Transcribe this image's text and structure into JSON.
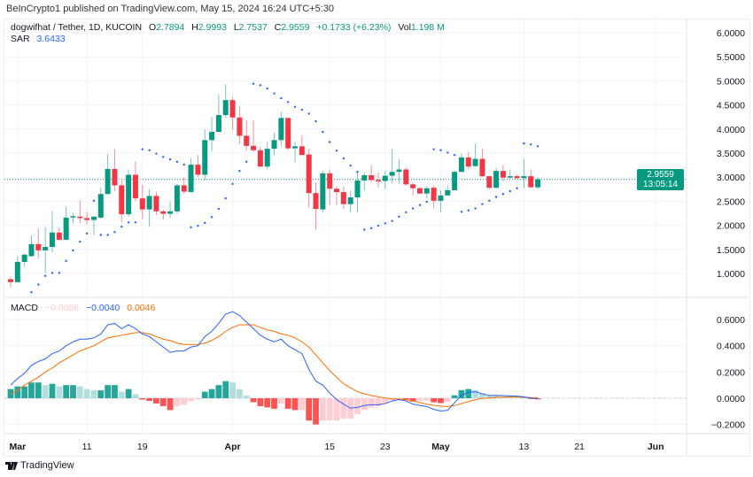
{
  "header": {
    "published": "BeInCrypto1 published on TradingView.com, May 15, 2024 16:24 UTC+5:30"
  },
  "legend": {
    "symbol": "dogwifhat / Tether, 1D, KUCOIN",
    "o_label": "O",
    "o": "2.7894",
    "h_label": "H",
    "h": "2.9993",
    "l_label": "L",
    "l": "2.7537",
    "c_label": "C",
    "c": "2.9559",
    "change": "+0.1733 (+6.23%)",
    "vol_label": "Vol",
    "vol": "1.198 M",
    "sar_label": "SAR",
    "sar": "3.6433",
    "macd_label": "MACD",
    "macd_hist": "−0.0086",
    "macd_line": "−0.0040",
    "macd_signal": "0.0046"
  },
  "price_tag": {
    "price": "2.9559",
    "countdown": "13:05:14"
  },
  "footer": {
    "brand": "TradingView"
  },
  "colors": {
    "up": "#089981",
    "down": "#f23645",
    "sar": "#2962ff",
    "macd": "#2962ff",
    "signal": "#ff6d00",
    "hist_up_strong": "#26a69a",
    "hist_up_weak": "#b2dfdb",
    "hist_down_strong": "#ff5252",
    "hist_down_weak": "#ffcdd2"
  },
  "chart_data": [
    {
      "type": "candlestick",
      "title": "dogwifhat / Tether, 1D, KUCOIN",
      "x_start": "2024-02-29",
      "x_end": "2024-05-15",
      "x_ticks": [
        {
          "label": "Mar",
          "day": 1
        },
        {
          "label": "11",
          "day": 11
        },
        {
          "label": "19",
          "day": 19
        },
        {
          "label": "Apr",
          "day": 32
        },
        {
          "label": "15",
          "day": 46
        },
        {
          "label": "23",
          "day": 54
        },
        {
          "label": "May",
          "day": 62
        },
        {
          "label": "13",
          "day": 74
        },
        {
          "label": "21",
          "day": 82
        },
        {
          "label": "Jun",
          "day": 93
        }
      ],
      "y_ticks": [
        "6.0000",
        "5.5000",
        "5.0000",
        "4.5000",
        "4.0000",
        "3.5000",
        "3.0000",
        "2.5000",
        "2.0000",
        "1.5000",
        "1.0000"
      ],
      "ylim": [
        0.55,
        6.3
      ],
      "grid": true,
      "ohlc": [
        [
          0.88,
          0.93,
          0.71,
          0.82
        ],
        [
          0.82,
          1.35,
          0.82,
          1.24
        ],
        [
          1.24,
          1.41,
          1.14,
          1.39
        ],
        [
          1.36,
          1.79,
          1.34,
          1.61
        ],
        [
          1.61,
          1.93,
          1.32,
          1.48
        ],
        [
          1.48,
          1.96,
          1.01,
          1.55
        ],
        [
          1.55,
          2.29,
          1.44,
          1.85
        ],
        [
          1.85,
          1.95,
          1.67,
          1.7
        ],
        [
          1.7,
          2.38,
          1.7,
          2.16
        ],
        [
          2.17,
          2.26,
          2.04,
          2.19
        ],
        [
          2.18,
          2.51,
          2.04,
          2.15
        ],
        [
          2.15,
          2.28,
          2.02,
          2.11
        ],
        [
          2.11,
          2.18,
          1.8,
          2.18
        ],
        [
          2.16,
          2.78,
          2.14,
          2.65
        ],
        [
          2.65,
          3.48,
          2.65,
          3.17
        ],
        [
          3.17,
          3.58,
          2.71,
          2.83
        ],
        [
          2.83,
          2.94,
          2.06,
          2.23
        ],
        [
          2.23,
          3.16,
          2.18,
          3.05
        ],
        [
          3.05,
          3.33,
          2.5,
          2.56
        ],
        [
          2.56,
          2.84,
          2.13,
          2.33
        ],
        [
          2.33,
          2.75,
          1.97,
          2.61
        ],
        [
          2.61,
          2.7,
          2.21,
          2.29
        ],
        [
          2.29,
          2.33,
          2.12,
          2.24
        ],
        [
          2.24,
          2.49,
          2.15,
          2.29
        ],
        [
          2.29,
          2.86,
          2.24,
          2.83
        ],
        [
          2.83,
          3.0,
          2.65,
          2.7
        ],
        [
          2.69,
          3.4,
          2.69,
          3.26
        ],
        [
          3.26,
          3.46,
          3.0,
          3.05
        ],
        [
          3.05,
          3.99,
          2.93,
          3.77
        ],
        [
          3.77,
          4.25,
          3.53,
          3.94
        ],
        [
          3.94,
          4.71,
          3.94,
          4.29
        ],
        [
          4.29,
          4.93,
          4.23,
          4.6
        ],
        [
          4.6,
          4.67,
          3.98,
          4.24
        ],
        [
          4.24,
          4.47,
          3.69,
          3.86
        ],
        [
          3.86,
          4.18,
          3.55,
          3.65
        ],
        [
          3.65,
          4.18,
          3.53,
          3.56
        ],
        [
          3.56,
          3.63,
          3.2,
          3.22
        ],
        [
          3.22,
          3.73,
          3.16,
          3.59
        ],
        [
          3.59,
          3.92,
          3.46,
          3.77
        ],
        [
          3.77,
          4.36,
          3.65,
          4.23
        ],
        [
          4.23,
          4.23,
          3.56,
          3.6
        ],
        [
          3.6,
          3.73,
          3.31,
          3.64
        ],
        [
          3.64,
          3.87,
          3.46,
          3.46
        ],
        [
          3.47,
          3.59,
          2.36,
          2.67
        ],
        [
          2.67,
          2.89,
          1.91,
          2.34
        ],
        [
          2.33,
          3.13,
          2.26,
          3.08
        ],
        [
          3.08,
          3.16,
          2.42,
          2.76
        ],
        [
          2.76,
          2.81,
          2.42,
          2.69
        ],
        [
          2.69,
          2.81,
          2.34,
          2.44
        ],
        [
          2.44,
          2.72,
          2.27,
          2.58
        ],
        [
          2.58,
          3.13,
          2.27,
          2.93
        ],
        [
          2.93,
          3.1,
          2.73,
          3.04
        ],
        [
          3.04,
          3.24,
          2.9,
          2.94
        ],
        [
          2.94,
          3.1,
          2.79,
          2.92
        ],
        [
          2.92,
          3.13,
          2.76,
          3.03
        ],
        [
          3.03,
          3.59,
          2.87,
          3.11
        ],
        [
          3.11,
          3.37,
          2.87,
          3.16
        ],
        [
          3.16,
          3.2,
          2.83,
          2.85
        ],
        [
          2.85,
          2.88,
          2.62,
          2.77
        ],
        [
          2.77,
          2.8,
          2.65,
          2.66
        ],
        [
          2.66,
          2.81,
          2.56,
          2.77
        ],
        [
          2.78,
          2.82,
          2.35,
          2.51
        ],
        [
          2.51,
          2.73,
          2.28,
          2.62
        ],
        [
          2.62,
          2.82,
          2.61,
          2.73
        ],
        [
          2.73,
          3.14,
          2.73,
          3.11
        ],
        [
          3.11,
          3.49,
          3.11,
          3.41
        ],
        [
          3.41,
          3.52,
          3.16,
          3.22
        ],
        [
          3.23,
          3.7,
          3.22,
          3.38
        ],
        [
          3.38,
          3.59,
          3.0,
          3.02
        ],
        [
          3.02,
          3.02,
          2.75,
          2.78
        ],
        [
          2.78,
          3.2,
          2.77,
          3.13
        ],
        [
          3.13,
          3.26,
          2.91,
          2.99
        ],
        [
          2.99,
          3.16,
          2.97,
          3.02
        ],
        [
          3.02,
          3.05,
          2.97,
          2.98
        ],
        [
          2.98,
          3.38,
          2.77,
          3.02
        ],
        [
          3.02,
          3.16,
          2.78,
          2.79
        ],
        [
          2.7894,
          2.9993,
          2.7537,
          2.9559
        ]
      ],
      "sar": [
        null,
        null,
        null,
        0.61,
        0.77,
        0.95,
        1.01,
        1.01,
        1.26,
        1.48,
        1.66,
        1.83,
        2.51,
        1.8,
        1.8,
        1.86,
        1.97,
        2.06,
        2.06,
        3.58,
        3.56,
        3.49,
        3.42,
        3.37,
        3.32,
        3.26,
        1.96,
        1.99,
        2.05,
        2.17,
        2.34,
        2.56,
        2.86,
        3.13,
        3.32,
        4.94,
        4.91,
        4.84,
        4.74,
        4.64,
        4.56,
        4.46,
        4.4,
        4.32,
        4.16,
        3.94,
        3.73,
        3.55,
        3.39,
        3.24,
        3.11,
        1.91,
        1.94,
        1.99,
        2.04,
        2.09,
        2.18,
        2.27,
        2.35,
        2.42,
        2.49,
        3.58,
        3.56,
        3.51,
        3.46,
        2.28,
        2.31,
        2.35,
        2.44,
        2.51,
        2.59,
        2.65,
        2.71,
        2.77,
        3.7,
        3.68,
        3.6433
      ],
      "last_price": 2.9559
    },
    {
      "type": "macd",
      "y_ticks": [
        "0.6000",
        "0.4000",
        "0.2000",
        "0.0000",
        "−0.2000"
      ],
      "ylim": [
        -0.27,
        0.72
      ],
      "macd": [
        0.1,
        0.15,
        0.19,
        0.25,
        0.28,
        0.3,
        0.34,
        0.36,
        0.4,
        0.43,
        0.45,
        0.45,
        0.46,
        0.49,
        0.56,
        0.57,
        0.53,
        0.56,
        0.53,
        0.49,
        0.47,
        0.43,
        0.39,
        0.35,
        0.36,
        0.36,
        0.39,
        0.4,
        0.47,
        0.51,
        0.57,
        0.64,
        0.66,
        0.63,
        0.58,
        0.53,
        0.48,
        0.45,
        0.43,
        0.45,
        0.4,
        0.37,
        0.34,
        0.22,
        0.13,
        0.1,
        0.04,
        -0.01,
        -0.045,
        -0.075,
        -0.07,
        -0.055,
        -0.05,
        -0.05,
        -0.04,
        -0.02,
        -0.01,
        -0.02,
        -0.045,
        -0.055,
        -0.063,
        -0.085,
        -0.097,
        -0.092,
        -0.034,
        0.022,
        0.045,
        0.05,
        0.034,
        0.02,
        0.022,
        0.02,
        0.018,
        0.016,
        0.011,
        0.002,
        -0.004
      ],
      "signal": [
        0.03,
        0.06,
        0.1,
        0.13,
        0.16,
        0.2,
        0.23,
        0.27,
        0.3,
        0.33,
        0.36,
        0.38,
        0.4,
        0.43,
        0.46,
        0.47,
        0.48,
        0.49,
        0.5,
        0.5,
        0.49,
        0.47,
        0.45,
        0.44,
        0.42,
        0.41,
        0.41,
        0.41,
        0.42,
        0.44,
        0.47,
        0.51,
        0.54,
        0.56,
        0.56,
        0.56,
        0.54,
        0.52,
        0.51,
        0.49,
        0.48,
        0.46,
        0.43,
        0.39,
        0.33,
        0.27,
        0.21,
        0.16,
        0.11,
        0.08,
        0.05,
        0.034,
        0.02,
        0.011,
        0.002,
        -0.004,
        -0.007,
        -0.011,
        -0.02,
        -0.034,
        -0.045,
        -0.054,
        -0.06,
        -0.063,
        -0.056,
        -0.04,
        -0.025,
        -0.011,
        -0.002,
        0.002,
        0.007,
        0.009,
        0.009,
        0.009,
        0.007,
        0.005,
        0.0046
      ],
      "histogram": [
        0.07,
        0.09,
        0.09,
        0.12,
        0.12,
        0.1,
        0.11,
        0.09,
        0.1,
        0.1,
        0.09,
        0.07,
        0.06,
        0.06,
        0.1,
        0.1,
        0.05,
        0.07,
        0.03,
        -0.01,
        -0.02,
        -0.04,
        -0.06,
        -0.09,
        -0.06,
        -0.05,
        -0.02,
        -0.01,
        0.05,
        0.07,
        0.1,
        0.13,
        0.12,
        0.07,
        0.02,
        -0.03,
        -0.06,
        -0.07,
        -0.08,
        -0.04,
        -0.08,
        -0.09,
        -0.09,
        -0.17,
        -0.2,
        -0.17,
        -0.17,
        -0.17,
        -0.155,
        -0.155,
        -0.12,
        -0.089,
        -0.07,
        -0.061,
        -0.042,
        -0.016,
        -0.003,
        -0.009,
        -0.025,
        -0.021,
        -0.018,
        -0.031,
        -0.037,
        -0.029,
        0.022,
        0.062,
        0.07,
        0.061,
        0.036,
        0.018,
        0.015,
        0.011,
        0.009,
        0.007,
        0.004,
        -0.003,
        -0.0086
      ]
    }
  ]
}
